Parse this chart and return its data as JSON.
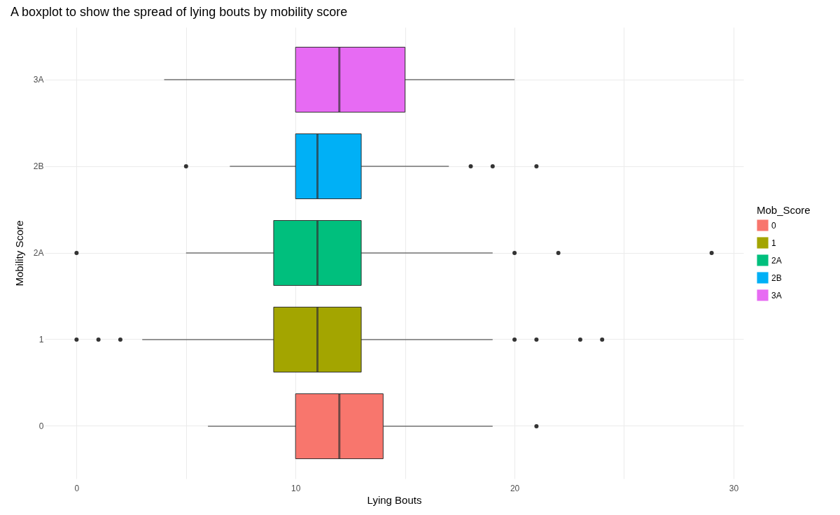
{
  "chart_data": {
    "type": "box",
    "title": "A boxplot to show the spread of lying bouts by mobility score",
    "xlabel": "Lying Bouts",
    "ylabel": "Mobility Score",
    "orientation": "horizontal",
    "legend": "right",
    "legend_title": "Mob_Score",
    "grid": true,
    "categories": [
      "3A",
      "2B",
      "2A",
      "1",
      "0"
    ],
    "series": [
      {
        "name": "0",
        "color": "#f8766d",
        "boxes": [
          null,
          null,
          null,
          null,
          {
            "low": 6,
            "q1": 10,
            "median": 12,
            "q3": 14,
            "high": 19,
            "outliers": [
              21
            ]
          }
        ]
      },
      {
        "name": "1",
        "color": "#a3a500",
        "boxes": [
          null,
          null,
          null,
          {
            "low": 3,
            "q1": 9,
            "median": 11,
            "q3": 13,
            "high": 19,
            "outliers": [
              0,
              1,
              2,
              20,
              21,
              23,
              24
            ]
          },
          null
        ]
      },
      {
        "name": "2A",
        "color": "#00bf7d",
        "boxes": [
          null,
          null,
          {
            "low": 5,
            "q1": 9,
            "median": 11,
            "q3": 13,
            "high": 19,
            "outliers": [
              0,
              20,
              22,
              29
            ]
          },
          null,
          null
        ]
      },
      {
        "name": "2B",
        "color": "#00b0f6",
        "boxes": [
          null,
          {
            "low": 7,
            "q1": 10,
            "median": 11,
            "q3": 13,
            "high": 17,
            "outliers": [
              5,
              18,
              19,
              21
            ]
          },
          null,
          null,
          null
        ]
      },
      {
        "name": "3A",
        "color": "#e76bf3",
        "boxes": [
          {
            "low": 4,
            "q1": 10,
            "median": 12,
            "q3": 15,
            "high": 20
          },
          null,
          null,
          null,
          null
        ]
      }
    ],
    "xlim": [
      -1.45,
      30.45
    ],
    "xticks": [
      0,
      {
        "value": 5,
        "label": null
      },
      10,
      {
        "value": 15,
        "label": null
      },
      20,
      {
        "value": 25,
        "label": null
      },
      30
    ]
  }
}
